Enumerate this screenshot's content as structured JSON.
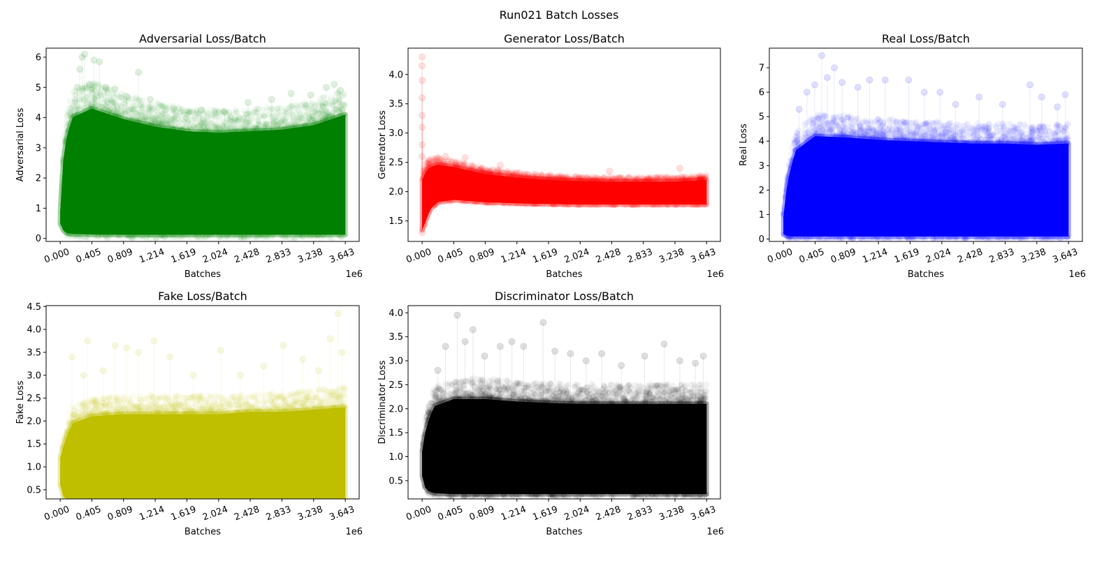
{
  "figure": {
    "title": "Run021 Batch Losses"
  },
  "chart_data": [
    {
      "type": "scatter",
      "title": "Adversarial Loss/Batch",
      "xlabel": "Batches",
      "ylabel": "Adversarial Loss",
      "x_offset_label": "1e6",
      "color": "#008000",
      "xlim": [
        -0.18,
        3.82
      ],
      "ylim": [
        -0.1,
        6.3
      ],
      "xticks": [
        0.0,
        0.405,
        0.809,
        1.214,
        1.619,
        2.024,
        2.428,
        2.833,
        3.238,
        3.643
      ],
      "xtick_labels": [
        "0.000",
        "0.405",
        "0.809",
        "1.214",
        "1.619",
        "2.024",
        "2.428",
        "2.833",
        "3.238",
        "3.643"
      ],
      "yticks": [
        0,
        1,
        2,
        3,
        4,
        5,
        6
      ],
      "ytick_labels": [
        "0",
        "1",
        "2",
        "3",
        "4",
        "5",
        "6"
      ],
      "x_max": 3.643,
      "band": [
        {
          "x": 0.0,
          "lo": 0.5,
          "hi": 0.9
        },
        {
          "x": 0.05,
          "lo": 0.2,
          "hi": 3.0
        },
        {
          "x": 0.15,
          "lo": 0.15,
          "hi": 4.0
        },
        {
          "x": 0.405,
          "lo": 0.13,
          "hi": 4.3
        },
        {
          "x": 0.809,
          "lo": 0.12,
          "hi": 3.95
        },
        {
          "x": 1.214,
          "lo": 0.12,
          "hi": 3.7
        },
        {
          "x": 1.619,
          "lo": 0.12,
          "hi": 3.55
        },
        {
          "x": 2.024,
          "lo": 0.12,
          "hi": 3.5
        },
        {
          "x": 2.428,
          "lo": 0.12,
          "hi": 3.55
        },
        {
          "x": 2.833,
          "lo": 0.12,
          "hi": 3.6
        },
        {
          "x": 3.238,
          "lo": 0.12,
          "hi": 3.75
        },
        {
          "x": 3.643,
          "lo": 0.12,
          "hi": 4.1
        }
      ],
      "outliers": [
        {
          "x": 0.22,
          "y": 5.0
        },
        {
          "x": 0.25,
          "y": 5.6
        },
        {
          "x": 0.28,
          "y": 6.0
        },
        {
          "x": 0.31,
          "y": 6.1
        },
        {
          "x": 0.38,
          "y": 5.1
        },
        {
          "x": 0.43,
          "y": 5.9
        },
        {
          "x": 0.5,
          "y": 5.85
        },
        {
          "x": 0.58,
          "y": 5.0
        },
        {
          "x": 0.7,
          "y": 4.95
        },
        {
          "x": 0.85,
          "y": 4.7
        },
        {
          "x": 1.0,
          "y": 5.5
        },
        {
          "x": 1.15,
          "y": 4.6
        },
        {
          "x": 1.45,
          "y": 4.3
        },
        {
          "x": 1.8,
          "y": 4.25
        },
        {
          "x": 2.1,
          "y": 4.2
        },
        {
          "x": 2.4,
          "y": 4.5
        },
        {
          "x": 2.7,
          "y": 4.6
        },
        {
          "x": 2.95,
          "y": 4.8
        },
        {
          "x": 3.2,
          "y": 4.75
        },
        {
          "x": 3.4,
          "y": 5.0
        },
        {
          "x": 3.5,
          "y": 5.1
        },
        {
          "x": 3.58,
          "y": 4.9
        }
      ]
    },
    {
      "type": "scatter",
      "title": "Generator Loss/Batch",
      "xlabel": "Batches",
      "ylabel": "Generator Loss",
      "x_offset_label": "1e6",
      "color": "#ff0000",
      "xlim": [
        -0.18,
        3.82
      ],
      "ylim": [
        1.15,
        4.45
      ],
      "xticks": [
        0.0,
        0.405,
        0.809,
        1.214,
        1.619,
        2.024,
        2.428,
        2.833,
        3.238,
        3.643
      ],
      "xtick_labels": [
        "0.000",
        "0.405",
        "0.809",
        "1.214",
        "1.619",
        "2.024",
        "2.428",
        "2.833",
        "3.238",
        "3.643"
      ],
      "yticks": [
        1.5,
        2.0,
        2.5,
        3.0,
        3.5,
        4.0
      ],
      "ytick_labels": [
        "1.5",
        "2.0",
        "2.5",
        "3.0",
        "3.5",
        "4.0"
      ],
      "x_max": 3.643,
      "band": [
        {
          "x": 0.0,
          "lo": 1.35,
          "hi": 2.2
        },
        {
          "x": 0.05,
          "lo": 1.5,
          "hi": 2.35
        },
        {
          "x": 0.1,
          "lo": 1.7,
          "hi": 2.42
        },
        {
          "x": 0.2,
          "lo": 1.82,
          "hi": 2.46
        },
        {
          "x": 0.405,
          "lo": 1.86,
          "hi": 2.42
        },
        {
          "x": 0.809,
          "lo": 1.82,
          "hi": 2.3
        },
        {
          "x": 1.214,
          "lo": 1.8,
          "hi": 2.24
        },
        {
          "x": 1.619,
          "lo": 1.79,
          "hi": 2.2
        },
        {
          "x": 2.024,
          "lo": 1.78,
          "hi": 2.18
        },
        {
          "x": 2.428,
          "lo": 1.78,
          "hi": 2.17
        },
        {
          "x": 2.833,
          "lo": 1.78,
          "hi": 2.17
        },
        {
          "x": 3.238,
          "lo": 1.78,
          "hi": 2.17
        },
        {
          "x": 3.643,
          "lo": 1.78,
          "hi": 2.2
        }
      ],
      "outliers": [
        {
          "x": 0.0,
          "y": 4.3
        },
        {
          "x": 0.0,
          "y": 4.15
        },
        {
          "x": 0.0,
          "y": 3.9
        },
        {
          "x": 0.0,
          "y": 3.6
        },
        {
          "x": 0.0,
          "y": 3.3
        },
        {
          "x": 0.0,
          "y": 3.1
        },
        {
          "x": 0.0,
          "y": 2.8
        },
        {
          "x": 0.0,
          "y": 2.6
        },
        {
          "x": 0.3,
          "y": 2.6
        },
        {
          "x": 0.55,
          "y": 2.58
        },
        {
          "x": 1.0,
          "y": 2.45
        },
        {
          "x": 2.4,
          "y": 2.35
        },
        {
          "x": 3.3,
          "y": 2.4
        },
        {
          "x": 0.0,
          "y": 1.3
        }
      ]
    },
    {
      "type": "scatter",
      "title": "Real Loss/Batch",
      "xlabel": "Batches",
      "ylabel": "Real Loss",
      "x_offset_label": "1e6",
      "color": "#0000ff",
      "xlim": [
        -0.18,
        3.82
      ],
      "ylim": [
        -0.1,
        7.8
      ],
      "xticks": [
        0.0,
        0.405,
        0.809,
        1.214,
        1.619,
        2.024,
        2.428,
        2.833,
        3.238,
        3.643
      ],
      "xtick_labels": [
        "0.000",
        "0.405",
        "0.809",
        "1.214",
        "1.619",
        "2.024",
        "2.428",
        "2.833",
        "3.238",
        "3.643"
      ],
      "yticks": [
        0,
        1,
        2,
        3,
        4,
        5,
        6,
        7
      ],
      "ytick_labels": [
        "0",
        "1",
        "2",
        "3",
        "4",
        "5",
        "6",
        "7"
      ],
      "x_max": 3.643,
      "band": [
        {
          "x": 0.0,
          "lo": 0.2,
          "hi": 0.9
        },
        {
          "x": 0.05,
          "lo": 0.12,
          "hi": 2.3
        },
        {
          "x": 0.15,
          "lo": 0.1,
          "hi": 3.6
        },
        {
          "x": 0.405,
          "lo": 0.1,
          "hi": 4.2
        },
        {
          "x": 0.809,
          "lo": 0.1,
          "hi": 4.15
        },
        {
          "x": 1.214,
          "lo": 0.1,
          "hi": 4.05
        },
        {
          "x": 1.619,
          "lo": 0.1,
          "hi": 4.0
        },
        {
          "x": 2.024,
          "lo": 0.1,
          "hi": 3.95
        },
        {
          "x": 2.428,
          "lo": 0.1,
          "hi": 3.9
        },
        {
          "x": 2.833,
          "lo": 0.1,
          "hi": 3.9
        },
        {
          "x": 3.238,
          "lo": 0.1,
          "hi": 3.85
        },
        {
          "x": 3.643,
          "lo": 0.1,
          "hi": 3.9
        }
      ],
      "outliers": [
        {
          "x": 0.2,
          "y": 5.3
        },
        {
          "x": 0.3,
          "y": 6.0
        },
        {
          "x": 0.4,
          "y": 6.3
        },
        {
          "x": 0.49,
          "y": 7.5
        },
        {
          "x": 0.56,
          "y": 6.6
        },
        {
          "x": 0.65,
          "y": 7.0
        },
        {
          "x": 0.75,
          "y": 6.4
        },
        {
          "x": 0.95,
          "y": 6.2
        },
        {
          "x": 1.1,
          "y": 6.5
        },
        {
          "x": 1.3,
          "y": 6.5
        },
        {
          "x": 1.6,
          "y": 6.5
        },
        {
          "x": 1.8,
          "y": 6.0
        },
        {
          "x": 2.0,
          "y": 6.0
        },
        {
          "x": 2.2,
          "y": 5.5
        },
        {
          "x": 2.5,
          "y": 5.8
        },
        {
          "x": 2.8,
          "y": 5.5
        },
        {
          "x": 3.15,
          "y": 6.3
        },
        {
          "x": 3.3,
          "y": 5.8
        },
        {
          "x": 3.5,
          "y": 5.4
        },
        {
          "x": 3.6,
          "y": 5.9
        }
      ]
    },
    {
      "type": "scatter",
      "title": "Fake Loss/Batch",
      "xlabel": "Batches",
      "ylabel": "Fake Loss",
      "x_offset_label": "1e6",
      "color": "#bfbf00",
      "xlim": [
        -0.18,
        3.82
      ],
      "ylim": [
        0.3,
        4.52
      ],
      "xticks": [
        0.0,
        0.405,
        0.809,
        1.214,
        1.619,
        2.024,
        2.428,
        2.833,
        3.238,
        3.643
      ],
      "xtick_labels": [
        "0.000",
        "0.405",
        "0.809",
        "1.214",
        "1.619",
        "2.024",
        "2.428",
        "2.833",
        "3.238",
        "3.643"
      ],
      "yticks": [
        0.5,
        1.0,
        1.5,
        2.0,
        2.5,
        3.0,
        3.5,
        4.0,
        4.5
      ],
      "ytick_labels": [
        "0.5",
        "1.0",
        "1.5",
        "2.0",
        "2.5",
        "3.0",
        "3.5",
        "4.0",
        "4.5"
      ],
      "x_max": 3.643,
      "band": [
        {
          "x": 0.0,
          "lo": 0.6,
          "hi": 1.2
        },
        {
          "x": 0.05,
          "lo": 0.3,
          "hi": 1.5
        },
        {
          "x": 0.15,
          "lo": 0.27,
          "hi": 1.95
        },
        {
          "x": 0.405,
          "lo": 0.26,
          "hi": 2.1
        },
        {
          "x": 0.809,
          "lo": 0.26,
          "hi": 2.15
        },
        {
          "x": 1.214,
          "lo": 0.26,
          "hi": 2.15
        },
        {
          "x": 1.619,
          "lo": 0.26,
          "hi": 2.15
        },
        {
          "x": 2.024,
          "lo": 0.26,
          "hi": 2.15
        },
        {
          "x": 2.428,
          "lo": 0.26,
          "hi": 2.2
        },
        {
          "x": 2.833,
          "lo": 0.26,
          "hi": 2.2
        },
        {
          "x": 3.238,
          "lo": 0.26,
          "hi": 2.25
        },
        {
          "x": 3.643,
          "lo": 0.26,
          "hi": 2.3
        }
      ],
      "outliers": [
        {
          "x": 0.15,
          "y": 3.4
        },
        {
          "x": 0.3,
          "y": 3.0
        },
        {
          "x": 0.35,
          "y": 3.75
        },
        {
          "x": 0.55,
          "y": 3.1
        },
        {
          "x": 0.7,
          "y": 3.65
        },
        {
          "x": 0.85,
          "y": 3.6
        },
        {
          "x": 1.0,
          "y": 3.5
        },
        {
          "x": 1.2,
          "y": 3.75
        },
        {
          "x": 1.4,
          "y": 3.4
        },
        {
          "x": 1.7,
          "y": 3.0
        },
        {
          "x": 2.05,
          "y": 3.55
        },
        {
          "x": 2.3,
          "y": 3.0
        },
        {
          "x": 2.6,
          "y": 3.2
        },
        {
          "x": 2.85,
          "y": 3.65
        },
        {
          "x": 3.1,
          "y": 3.35
        },
        {
          "x": 3.3,
          "y": 3.1
        },
        {
          "x": 3.45,
          "y": 3.8
        },
        {
          "x": 3.55,
          "y": 4.35
        },
        {
          "x": 3.6,
          "y": 3.5
        }
      ]
    },
    {
      "type": "scatter",
      "title": "Discriminator Loss/Batch",
      "xlabel": "Batches",
      "ylabel": "Discriminator Loss",
      "x_offset_label": "1e6",
      "color": "#000000",
      "xlim": [
        -0.18,
        3.82
      ],
      "ylim": [
        0.12,
        4.15
      ],
      "xticks": [
        0.0,
        0.405,
        0.809,
        1.214,
        1.619,
        2.024,
        2.428,
        2.833,
        3.238,
        3.643
      ],
      "xtick_labels": [
        "0.000",
        "0.405",
        "0.809",
        "1.214",
        "1.619",
        "2.024",
        "2.428",
        "2.833",
        "3.238",
        "3.643"
      ],
      "yticks": [
        0.5,
        1.0,
        1.5,
        2.0,
        2.5,
        3.0,
        3.5,
        4.0
      ],
      "ytick_labels": [
        "0.5",
        "1.0",
        "1.5",
        "2.0",
        "2.5",
        "3.0",
        "3.5",
        "4.0"
      ],
      "x_max": 3.643,
      "band": [
        {
          "x": 0.0,
          "lo": 0.6,
          "hi": 1.1
        },
        {
          "x": 0.05,
          "lo": 0.3,
          "hi": 1.6
        },
        {
          "x": 0.15,
          "lo": 0.24,
          "hi": 2.05
        },
        {
          "x": 0.405,
          "lo": 0.22,
          "hi": 2.2
        },
        {
          "x": 0.809,
          "lo": 0.22,
          "hi": 2.2
        },
        {
          "x": 1.214,
          "lo": 0.22,
          "hi": 2.15
        },
        {
          "x": 1.619,
          "lo": 0.22,
          "hi": 2.12
        },
        {
          "x": 2.024,
          "lo": 0.22,
          "hi": 2.1
        },
        {
          "x": 2.428,
          "lo": 0.22,
          "hi": 2.1
        },
        {
          "x": 2.833,
          "lo": 0.22,
          "hi": 2.1
        },
        {
          "x": 3.238,
          "lo": 0.22,
          "hi": 2.1
        },
        {
          "x": 3.643,
          "lo": 0.22,
          "hi": 2.1
        }
      ],
      "outliers": [
        {
          "x": 0.2,
          "y": 2.8
        },
        {
          "x": 0.3,
          "y": 3.3
        },
        {
          "x": 0.45,
          "y": 3.95
        },
        {
          "x": 0.55,
          "y": 3.4
        },
        {
          "x": 0.65,
          "y": 3.65
        },
        {
          "x": 0.8,
          "y": 3.1
        },
        {
          "x": 1.0,
          "y": 3.3
        },
        {
          "x": 1.15,
          "y": 3.4
        },
        {
          "x": 1.3,
          "y": 3.3
        },
        {
          "x": 1.55,
          "y": 3.8
        },
        {
          "x": 1.7,
          "y": 3.2
        },
        {
          "x": 1.9,
          "y": 3.15
        },
        {
          "x": 2.1,
          "y": 3.0
        },
        {
          "x": 2.3,
          "y": 3.15
        },
        {
          "x": 2.55,
          "y": 2.9
        },
        {
          "x": 2.85,
          "y": 3.1
        },
        {
          "x": 3.1,
          "y": 3.35
        },
        {
          "x": 3.3,
          "y": 3.0
        },
        {
          "x": 3.5,
          "y": 2.95
        },
        {
          "x": 3.6,
          "y": 3.1
        }
      ]
    }
  ]
}
